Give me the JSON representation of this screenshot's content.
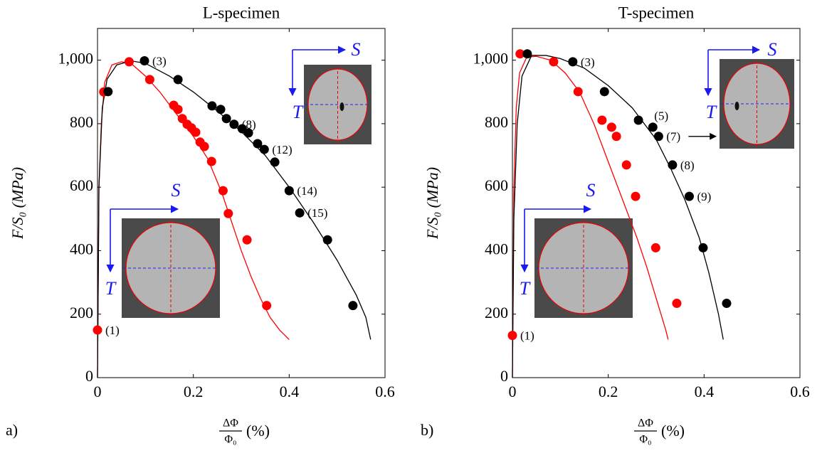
{
  "chart_data": [
    {
      "type": "scatter",
      "title": "L-specimen",
      "panel": "a)",
      "ylabel": "F/S₀ (MPa)",
      "xlabel": {
        "numerator": "ΔΦ",
        "denominator": "Φ₀",
        "unit": "(%)"
      },
      "xlim": [
        0,
        0.6
      ],
      "ylim": [
        0,
        1100
      ],
      "xticks": [
        0,
        0.2,
        0.4,
        0.6
      ],
      "yticks": [
        0,
        200,
        400,
        600,
        800,
        {
          "value": 1000,
          "label": "1,000"
        }
      ],
      "inset_labels": [
        "S",
        "T"
      ],
      "series": [
        {
          "mode": "markers",
          "color": "#ff0000",
          "x": [
            0,
            0.013,
            0.066,
            0.109,
            0.159,
            0.168,
            0.177,
            0.187,
            0.196,
            0.205,
            0.214,
            0.223,
            0.238,
            0.262,
            0.273,
            0.312,
            0.353
          ],
          "values": [
            150,
            900,
            995,
            939,
            858,
            845,
            816,
            798,
            787,
            773,
            742,
            728,
            681,
            589,
            517,
            434,
            227
          ],
          "labels": [
            "(1)",
            null,
            null,
            null,
            null,
            null,
            null,
            null,
            null,
            null,
            null,
            null,
            null,
            null,
            null,
            null,
            null
          ]
        },
        {
          "mode": "markers",
          "color": "#000000",
          "x": [
            0.022,
            0.098,
            0.168,
            0.239,
            0.257,
            0.269,
            0.285,
            0.302,
            0.315,
            0.334,
            0.348,
            0.37,
            0.4,
            0.422,
            0.48,
            0.533
          ],
          "values": [
            901,
            998,
            939,
            856,
            845,
            816,
            798,
            784,
            771,
            737,
            719,
            679,
            589,
            519,
            434,
            227
          ],
          "labels": [
            null,
            "(3)",
            null,
            null,
            null,
            null,
            "(8)",
            null,
            null,
            null,
            "(12)",
            null,
            "(14)",
            "(15)",
            null,
            null
          ]
        },
        {
          "mode": "line",
          "color": "#ff0000",
          "x": [
            0,
            0.003,
            0.008,
            0.015,
            0.03,
            0.05,
            0.07,
            0.1,
            0.13,
            0.17,
            0.2,
            0.23,
            0.26,
            0.28,
            0.3,
            0.32,
            0.34,
            0.36,
            0.38,
            0.4
          ],
          "values": [
            0,
            600,
            800,
            930,
            985,
            995,
            990,
            950,
            900,
            820,
            760,
            690,
            580,
            490,
            400,
            320,
            250,
            190,
            150,
            120
          ]
        },
        {
          "mode": "line",
          "color": "#000000",
          "x": [
            0,
            0.003,
            0.01,
            0.02,
            0.04,
            0.07,
            0.1,
            0.15,
            0.2,
            0.25,
            0.3,
            0.35,
            0.4,
            0.45,
            0.5,
            0.54,
            0.56,
            0.57
          ],
          "values": [
            0,
            600,
            850,
            940,
            985,
            998,
            990,
            950,
            900,
            840,
            775,
            700,
            600,
            490,
            370,
            260,
            190,
            120
          ]
        }
      ]
    },
    {
      "type": "scatter",
      "title": "T-specimen",
      "panel": "b)",
      "ylabel": "F/S₀ (MPa)",
      "xlabel": {
        "numerator": "ΔΦ",
        "denominator": "Φ₀",
        "unit": "(%)"
      },
      "xlim": [
        0,
        0.6
      ],
      "ylim": [
        0,
        1100
      ],
      "xticks": [
        0,
        0.2,
        0.4,
        0.6
      ],
      "yticks": [
        0,
        200,
        400,
        600,
        800,
        {
          "value": 1000,
          "label": "1,000"
        }
      ],
      "inset_labels": [
        "S",
        "T"
      ],
      "series": [
        {
          "mode": "markers",
          "color": "#ff0000",
          "x": [
            0,
            0.016,
            0.086,
            0.137,
            0.187,
            0.207,
            0.217,
            0.238,
            0.257,
            0.299,
            0.343
          ],
          "values": [
            133,
            1020,
            995,
            901,
            811,
            789,
            760,
            670,
            571,
            409,
            234
          ],
          "labels": [
            "(1)",
            null,
            null,
            null,
            null,
            null,
            null,
            null,
            null,
            null,
            null
          ]
        },
        {
          "mode": "markers",
          "color": "#000000",
          "x": [
            0.031,
            0.126,
            0.192,
            0.263,
            0.293,
            0.305,
            0.334,
            0.369,
            0.398,
            0.447
          ],
          "values": [
            1020,
            995,
            901,
            811,
            789,
            760,
            670,
            571,
            409,
            234
          ],
          "labels": [
            null,
            "(3)",
            null,
            null,
            "(5)",
            "(7)",
            "(8)",
            "(9)",
            null,
            null
          ]
        },
        {
          "mode": "line",
          "color": "#ff0000",
          "x": [
            0,
            0.003,
            0.008,
            0.015,
            0.03,
            0.05,
            0.08,
            0.11,
            0.14,
            0.17,
            0.2,
            0.23,
            0.26,
            0.28,
            0.3,
            0.32,
            0.325
          ],
          "values": [
            0,
            600,
            850,
            960,
            1010,
            1012,
            1000,
            960,
            900,
            800,
            680,
            560,
            440,
            350,
            250,
            150,
            120
          ]
        },
        {
          "mode": "line",
          "color": "#000000",
          "x": [
            0,
            0.003,
            0.01,
            0.02,
            0.04,
            0.07,
            0.1,
            0.15,
            0.2,
            0.25,
            0.3,
            0.33,
            0.36,
            0.39,
            0.41,
            0.43,
            0.44
          ],
          "values": [
            0,
            500,
            800,
            950,
            1015,
            1015,
            1005,
            975,
            920,
            850,
            750,
            660,
            560,
            440,
            330,
            200,
            120
          ]
        }
      ]
    }
  ]
}
